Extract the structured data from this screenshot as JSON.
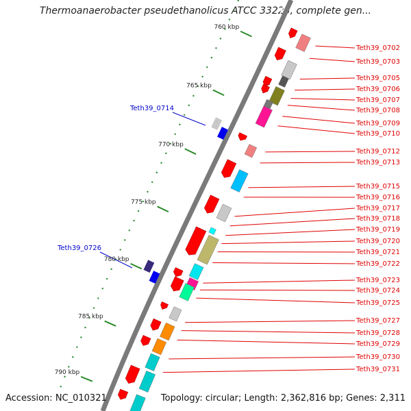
{
  "title": "Thermoanaerobacter pseudethanolicus ATCC 33223, complete gen...",
  "accession": "Accession: NC_010321",
  "summary": "Topology: circular; Length: 2,362,816 bp; Genes: 2,311",
  "ticks": [
    "760 kbp",
    "765 kbp",
    "770 kbp",
    "775 kbp",
    "780 kbp",
    "785 kbp",
    "790 kbp"
  ],
  "forward_labels": [
    "Teth39_0714",
    "Teth39_0726"
  ],
  "reverse_labels": [
    "Teth39_0702",
    "Teth39_0703",
    "Teth39_0705",
    "Teth39_0706",
    "Teth39_0707",
    "Teth39_0708",
    "Teth39_0709",
    "Teth39_0710",
    "Teth39_0712",
    "Teth39_0713",
    "Teth39_0715",
    "Teth39_0716",
    "Teth39_0717",
    "Teth39_0718",
    "Teth39_0719",
    "Teth39_0720",
    "Teth39_0721",
    "Teth39_0722",
    "Teth39_0723",
    "Teth39_0724",
    "Teth39_0725",
    "Teth39_0727",
    "Teth39_0728",
    "Teth39_0729",
    "Teth39_0730",
    "Teth39_0731"
  ]
}
